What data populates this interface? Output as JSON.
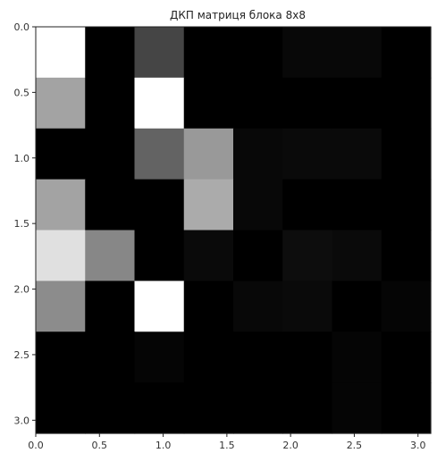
{
  "chart_data": {
    "type": "heatmap",
    "title": "ДКП матриця блока 8x8",
    "colormap": "gray",
    "x_tick_labels": [
      "0.0",
      "0.5",
      "1.0",
      "1.5",
      "2.0",
      "2.5",
      "3.0"
    ],
    "y_tick_labels": [
      "0.0",
      "0.5",
      "1.0",
      "1.5",
      "2.0",
      "2.5",
      "3.0"
    ],
    "x_ticks": [
      0.0,
      0.5,
      1.0,
      1.5,
      2.0,
      2.5,
      3.0
    ],
    "y_ticks": [
      0.0,
      0.5,
      1.0,
      1.5,
      2.0,
      2.5,
      3.0
    ],
    "xlim": [
      0.0,
      3.1
    ],
    "ylim": [
      3.1,
      0.0
    ],
    "rows": 8,
    "cols": 8,
    "values": [
      [
        1.0,
        0.0,
        0.27,
        0.0,
        0.0,
        0.03,
        0.03,
        0.0
      ],
      [
        0.64,
        0.0,
        1.0,
        0.0,
        0.0,
        0.0,
        0.0,
        0.0
      ],
      [
        0.0,
        0.0,
        0.39,
        0.6,
        0.03,
        0.04,
        0.04,
        0.0
      ],
      [
        0.64,
        0.0,
        0.0,
        0.67,
        0.03,
        0.0,
        0.0,
        0.0
      ],
      [
        0.88,
        0.53,
        0.0,
        0.04,
        0.0,
        0.05,
        0.04,
        0.0
      ],
      [
        0.55,
        0.0,
        1.0,
        0.0,
        0.03,
        0.04,
        0.0,
        0.02
      ],
      [
        0.0,
        0.0,
        0.02,
        0.0,
        0.0,
        0.0,
        0.02,
        0.0
      ],
      [
        0.0,
        0.0,
        0.0,
        0.0,
        0.0,
        0.0,
        0.02,
        0.0
      ]
    ]
  }
}
